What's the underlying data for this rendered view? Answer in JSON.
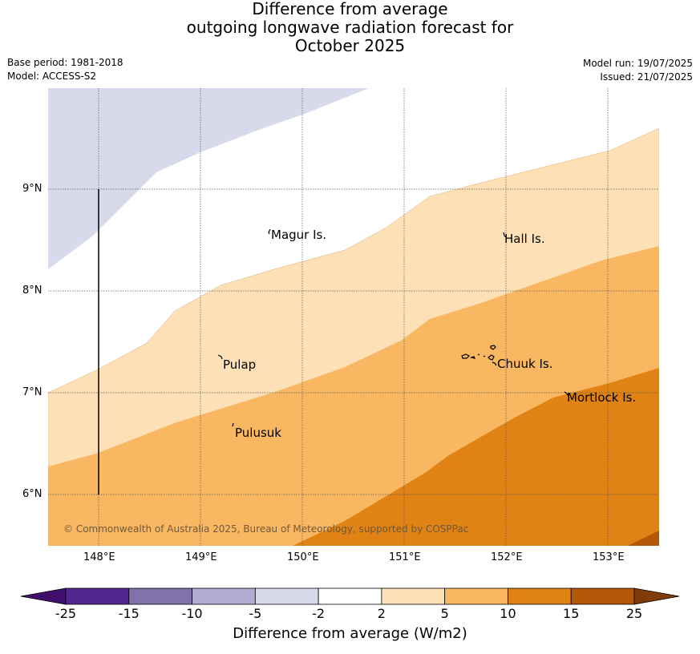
{
  "title": {
    "line1": "Difference from average",
    "line2": "outgoing longwave radiation forecast for",
    "line3": "October 2025"
  },
  "meta": {
    "base_period": "Base period: 1981-2018",
    "model": "Model: ACCESS-S2",
    "model_run": "Model run: 19/07/2025",
    "issued": "Issued: 21/07/2025"
  },
  "map": {
    "lat_ticks": [
      "9°N",
      "8°N",
      "7°N",
      "6°N"
    ],
    "lon_ticks": [
      "148°E",
      "149°E",
      "150°E",
      "151°E",
      "152°E",
      "153°E"
    ],
    "places": [
      "Magur Is.",
      "Hall Is.",
      "Pulap",
      "Chuuk Is.",
      "Mortlock Is.",
      "Pulusuk"
    ],
    "copyright": "© Commonwealth of Australia 2025, Bureau of Meteorology, supported by COSPPac"
  },
  "colorbar": {
    "label": "Difference from average (W/m2)",
    "ticks": [
      "-25",
      "-15",
      "-10",
      "-5",
      "-2",
      "2",
      "5",
      "10",
      "15",
      "25"
    ],
    "colors": [
      "#3f0f6b",
      "#54278f",
      "#8073ac",
      "#b2abd2",
      "#d8daeb",
      "#ffffff",
      "#fde0b6",
      "#fab762",
      "#e08214",
      "#b35806",
      "#7f3b08"
    ]
  }
}
